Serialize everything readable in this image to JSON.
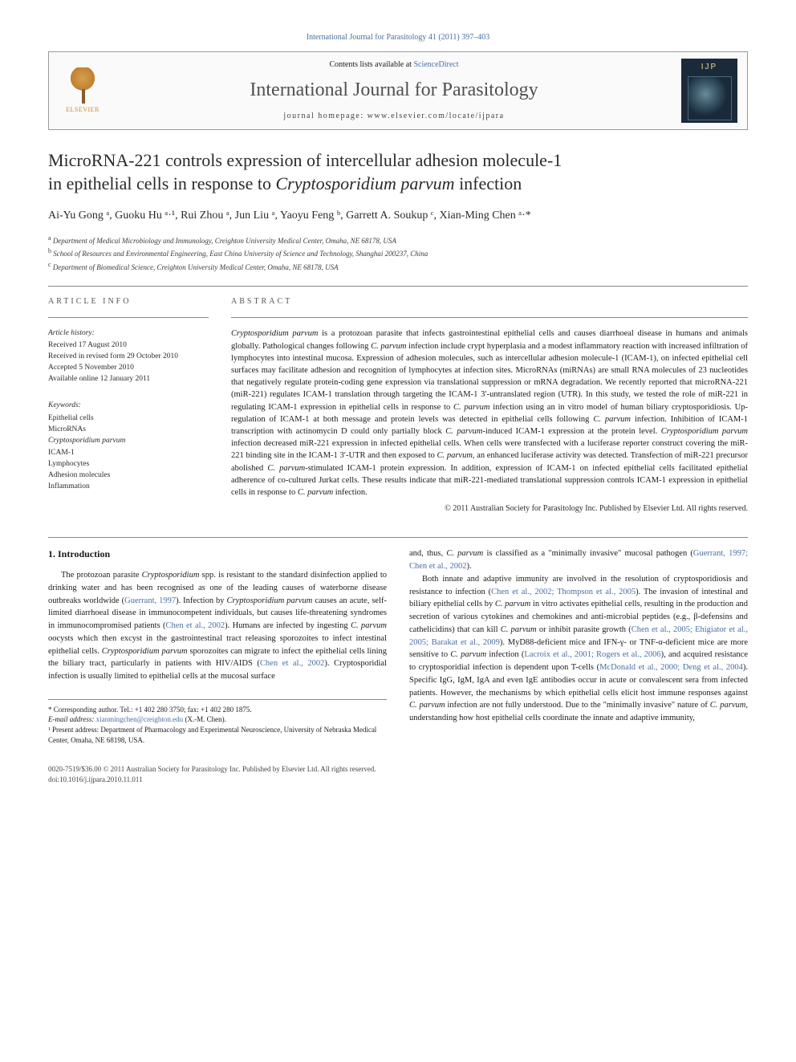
{
  "topLink": "International Journal for Parasitology 41 (2011) 397–403",
  "header": {
    "elsevierLabel": "ELSEVIER",
    "contentsPrefix": "Contents lists available at ",
    "contentsLink": "ScienceDirect",
    "journalName": "International Journal for Parasitology",
    "homepage": "journal homepage: www.elsevier.com/locate/ijpara",
    "ijpLabel": "IJP"
  },
  "title": {
    "line1": "MicroRNA-221 controls expression of intercellular adhesion molecule-1",
    "line2pre": "in epithelial cells in response to ",
    "line2italic": "Cryptosporidium parvum",
    "line2post": " infection"
  },
  "authors": "Ai-Yu Gong ᵃ, Guoku Hu ᵃ·¹, Rui Zhou ᵃ, Jun Liu ᵃ, Yaoyu Feng ᵇ, Garrett A. Soukup ᶜ, Xian-Ming Chen ᵃ·*",
  "affiliations": [
    {
      "sup": "a",
      "text": "Department of Medical Microbiology and Immunology, Creighton University Medical Center, Omaha, NE 68178, USA"
    },
    {
      "sup": "b",
      "text": "School of Resources and Environmental Engineering, East China University of Science and Technology, Shanghai 200237, China"
    },
    {
      "sup": "c",
      "text": "Department of Biomedical Science, Creighton University Medical Center, Omaha, NE 68178, USA"
    }
  ],
  "articleInfo": {
    "label": "ARTICLE INFO",
    "historyLabel": "Article history:",
    "history": [
      "Received 17 August 2010",
      "Received in revised form 29 October 2010",
      "Accepted 5 November 2010",
      "Available online 12 January 2011"
    ],
    "keywordsLabel": "Keywords:",
    "keywords": [
      {
        "text": "Epithelial cells",
        "italic": false
      },
      {
        "text": "MicroRNAs",
        "italic": false
      },
      {
        "text": "Cryptosporidium parvum",
        "italic": true
      },
      {
        "text": "ICAM-1",
        "italic": false
      },
      {
        "text": "Lymphocytes",
        "italic": false
      },
      {
        "text": "Adhesion molecules",
        "italic": false
      },
      {
        "text": "Inflammation",
        "italic": false
      }
    ]
  },
  "abstract": {
    "label": "ABSTRACT",
    "text": "Cryptosporidium parvum is a protozoan parasite that infects gastrointestinal epithelial cells and causes diarrhoeal disease in humans and animals globally. Pathological changes following C. parvum infection include crypt hyperplasia and a modest inflammatory reaction with increased infiltration of lymphocytes into intestinal mucosa. Expression of adhesion molecules, such as intercellular adhesion molecule-1 (ICAM-1), on infected epithelial cell surfaces may facilitate adhesion and recognition of lymphocytes at infection sites. MicroRNAs (miRNAs) are small RNA molecules of 23 nucleotides that negatively regulate protein-coding gene expression via translational suppression or mRNA degradation. We recently reported that microRNA-221 (miR-221) regulates ICAM-1 translation through targeting the ICAM-1 3′-untranslated region (UTR). In this study, we tested the role of miR-221 in regulating ICAM-1 expression in epithelial cells in response to C. parvum infection using an in vitro model of human biliary cryptosporidiosis. Up-regulation of ICAM-1 at both message and protein levels was detected in epithelial cells following C. parvum infection. Inhibition of ICAM-1 transcription with actinomycin D could only partially block C. parvum-induced ICAM-1 expression at the protein level. Cryptosporidium parvum infection decreased miR-221 expression in infected epithelial cells. When cells were transfected with a luciferase reporter construct covering the miR-221 binding site in the ICAM-1 3′-UTR and then exposed to C. parvum, an enhanced luciferase activity was detected. Transfection of miR-221 precursor abolished C. parvum-stimulated ICAM-1 protein expression. In addition, expression of ICAM-1 on infected epithelial cells facilitated epithelial adherence of co-cultured Jurkat cells. These results indicate that miR-221-mediated translational suppression controls ICAM-1 expression in epithelial cells in response to C. parvum infection.",
    "copyright": "© 2011 Australian Society for Parasitology Inc. Published by Elsevier Ltd. All rights reserved."
  },
  "introduction": {
    "heading": "1. Introduction",
    "para1": "The protozoan parasite Cryptosporidium spp. is resistant to the standard disinfection applied to drinking water and has been recognised as one of the leading causes of waterborne disease outbreaks worldwide (Guerrant, 1997). Infection by Cryptosporidium parvum causes an acute, self-limited diarrhoeal disease in immunocompetent individuals, but causes life-threatening syndromes in immunocompromised patients (Chen et al., 2002). Humans are infected by ingesting C. parvum oocysts which then excyst in the gastrointestinal tract releasing sporozoites to infect intestinal epithelial cells. Cryptosporidium parvum sporozoites can migrate to infect the epithelial cells lining the biliary tract, particularly in patients with HIV/AIDS (Chen et al., 2002). Cryptosporidial infection is usually limited to epithelial cells at the mucosal surface",
    "para2a": "and, thus, C. parvum is classified as a \"minimally invasive\" mucosal pathogen (Guerrant, 1997; Chen et al., 2002).",
    "para2b": "Both innate and adaptive immunity are involved in the resolution of cryptosporidiosis and resistance to infection (Chen et al., 2002; Thompson et al., 2005). The invasion of intestinal and biliary epithelial cells by C. parvum in vitro activates epithelial cells, resulting in the production and secretion of various cytokines and chemokines and anti-microbial peptides (e.g., β-defensins and cathelicidins) that can kill C. parvum or inhibit parasite growth (Chen et al., 2005; Ehigiator et al., 2005; Barakat et al., 2009). MyD88-deficient mice and IFN-γ- or TNF-α-deficient mice are more sensitive to C. parvum infection (Lacroix et al., 2001; Rogers et al., 2006), and acquired resistance to cryptosporidial infection is dependent upon T-cells (McDonald et al., 2000; Deng et al., 2004). Specific IgG, IgM, IgA and even IgE antibodies occur in acute or convalescent sera from infected patients. However, the mechanisms by which epithelial cells elicit host immune responses against C. parvum infection are not fully understood. Due to the \"minimally invasive\" nature of C. parvum, understanding how host epithelial cells coordinate the innate and adaptive immunity,"
  },
  "footnotes": {
    "corr": "* Corresponding author. Tel.: +1 402 280 3750; fax: +1 402 280 1875.",
    "emailLabel": "E-mail address: ",
    "email": "xianmingchen@creighton.edu",
    "emailSuffix": " (X.-M. Chen).",
    "present": "¹ Present address: Department of Pharmacology and Experimental Neuroscience, University of Nebraska Medical Center, Omaha, NE 68198, USA."
  },
  "footer": {
    "issn": "0020-7519/$36.00 © 2011 Australian Society for Parasitology Inc. Published by Elsevier Ltd. All rights reserved.",
    "doi": "doi:10.1016/j.ijpara.2010.11.011"
  }
}
